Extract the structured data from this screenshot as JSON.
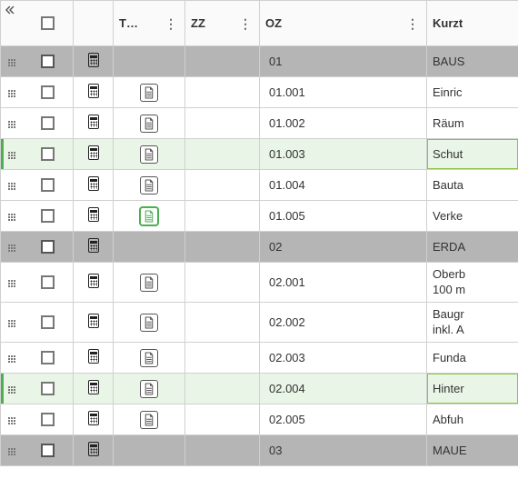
{
  "columns": {
    "t": "T…",
    "zz": "ZZ",
    "oz": "OZ",
    "kurz": "Kurzt"
  },
  "rows": [
    {
      "type": "section",
      "oz": "01",
      "txt": "BAUS"
    },
    {
      "type": "row",
      "oz": "01.001",
      "txt": "Einric"
    },
    {
      "type": "row",
      "oz": "01.002",
      "txt": "Räum"
    },
    {
      "type": "row-hl",
      "oz": "01.003",
      "txt": "Schut"
    },
    {
      "type": "row",
      "oz": "01.004",
      "txt": "Bauta"
    },
    {
      "type": "row",
      "oz": "01.005",
      "txt": "Verke",
      "docActive": true
    },
    {
      "type": "section",
      "oz": "02",
      "txt": "ERDA"
    },
    {
      "type": "row",
      "oz": "02.001",
      "txt": "Oberb\n100 m",
      "tall": true
    },
    {
      "type": "row",
      "oz": "02.002",
      "txt": "Baugr\ninkl. A",
      "tall": true
    },
    {
      "type": "row",
      "oz": "02.003",
      "txt": "Funda"
    },
    {
      "type": "row-hl2",
      "oz": "02.004",
      "txt": "Hinter"
    },
    {
      "type": "row",
      "oz": "02.005",
      "txt": "Abfuh"
    },
    {
      "type": "section",
      "oz": "03",
      "txt": "MAUE"
    }
  ]
}
